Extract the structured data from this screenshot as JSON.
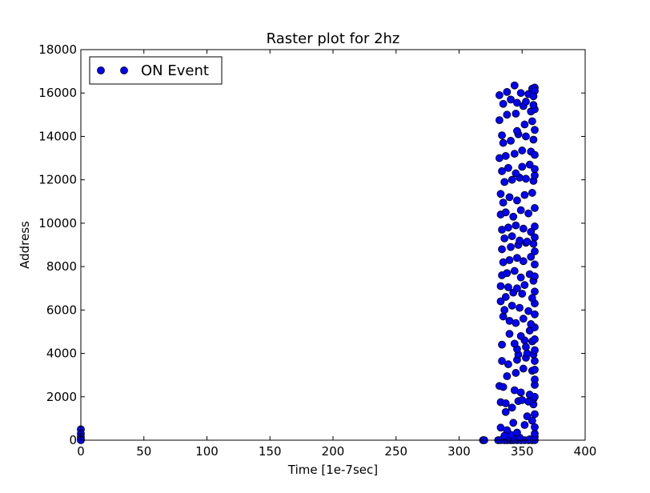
{
  "chart_data": {
    "type": "scatter",
    "title": "Raster plot for 2hz",
    "xlabel": "Time [1e-7sec]",
    "ylabel": "Address",
    "xlim": [
      0,
      400
    ],
    "ylim": [
      0,
      18000
    ],
    "xticks": [
      0,
      50,
      100,
      150,
      200,
      250,
      300,
      350,
      400
    ],
    "xtick_labels": [
      "0",
      "50",
      "100",
      "150",
      "200",
      "250",
      "300",
      "350",
      "400"
    ],
    "yticks": [
      0,
      2000,
      4000,
      6000,
      8000,
      10000,
      12000,
      14000,
      16000,
      18000
    ],
    "ytick_labels": [
      "0",
      "2000",
      "4000",
      "6000",
      "8000",
      "10000",
      "12000",
      "14000",
      "16000",
      "18000"
    ],
    "grid": false,
    "legend_position": "top-left",
    "series": [
      {
        "name": "ON Event",
        "color": "#0000ff",
        "marker": "circle",
        "points": [
          [
            0,
            500
          ],
          [
            0,
            300
          ],
          [
            0,
            150
          ],
          [
            0,
            50
          ],
          [
            0,
            0
          ],
          [
            319,
            0
          ],
          [
            320,
            0
          ],
          [
            331,
            0
          ],
          [
            333,
            0
          ],
          [
            336,
            0
          ],
          [
            338,
            0
          ],
          [
            341,
            0
          ],
          [
            343,
            0
          ],
          [
            346,
            0
          ],
          [
            349,
            0
          ],
          [
            352,
            0
          ],
          [
            355,
            0
          ],
          [
            358,
            0
          ],
          [
            360,
            0
          ],
          [
            339,
            80
          ],
          [
            344,
            60
          ],
          [
            356,
            40
          ],
          [
            360,
            150
          ],
          [
            360,
            300
          ],
          [
            341,
            250
          ],
          [
            348,
            120
          ],
          [
            333,
            580
          ],
          [
            338,
            460
          ],
          [
            343,
            800
          ],
          [
            352,
            700
          ],
          [
            358,
            900
          ],
          [
            360,
            600
          ],
          [
            336,
            200
          ],
          [
            346,
            350
          ],
          [
            337,
            1300
          ],
          [
            342,
            1500
          ],
          [
            354,
            1100
          ],
          [
            359,
            1650
          ],
          [
            360,
            1200
          ],
          [
            333,
            1750
          ],
          [
            337,
            1700
          ],
          [
            347,
            1800
          ],
          [
            350,
            1850
          ],
          [
            355,
            1780
          ],
          [
            359,
            1900
          ],
          [
            360,
            2000
          ],
          [
            332,
            2500
          ],
          [
            335,
            2450
          ],
          [
            344,
            2300
          ],
          [
            349,
            2200
          ],
          [
            356,
            2100
          ],
          [
            360,
            2550
          ],
          [
            360,
            2800
          ],
          [
            338,
            2950
          ],
          [
            345,
            3100
          ],
          [
            351,
            3300
          ],
          [
            358,
            3200
          ],
          [
            360,
            3250
          ],
          [
            334,
            3650
          ],
          [
            339,
            3500
          ],
          [
            346,
            3700
          ],
          [
            353,
            3800
          ],
          [
            360,
            3650
          ],
          [
            347,
            3950
          ],
          [
            354,
            4000
          ],
          [
            359,
            3950
          ],
          [
            360,
            4150
          ],
          [
            346,
            4200
          ],
          [
            353,
            4300
          ],
          [
            334,
            4400
          ],
          [
            344,
            4450
          ],
          [
            352,
            4600
          ],
          [
            358,
            4550
          ],
          [
            360,
            4650
          ],
          [
            340,
            4900
          ],
          [
            349,
            4800
          ],
          [
            356,
            5050
          ],
          [
            360,
            5200
          ],
          [
            335,
            5700
          ],
          [
            340,
            5500
          ],
          [
            345,
            5400
          ],
          [
            351,
            5600
          ],
          [
            357,
            5350
          ],
          [
            360,
            5800
          ],
          [
            336,
            6000
          ],
          [
            342,
            6200
          ],
          [
            348,
            6100
          ],
          [
            355,
            5950
          ],
          [
            360,
            6300
          ],
          [
            333,
            6400
          ],
          [
            337,
            6600
          ],
          [
            343,
            6800
          ],
          [
            350,
            6750
          ],
          [
            358,
            6550
          ],
          [
            360,
            6850
          ],
          [
            333,
            7100
          ],
          [
            339,
            7050
          ],
          [
            346,
            7000
          ],
          [
            352,
            7150
          ],
          [
            359,
            7350
          ],
          [
            334,
            7600
          ],
          [
            338,
            7700
          ],
          [
            344,
            7800
          ],
          [
            349,
            7500
          ],
          [
            356,
            7650
          ],
          [
            360,
            7550
          ],
          [
            335,
            8200
          ],
          [
            340,
            8300
          ],
          [
            346,
            8400
          ],
          [
            351,
            8250
          ],
          [
            357,
            8450
          ],
          [
            360,
            8100
          ],
          [
            334,
            8800
          ],
          [
            341,
            8900
          ],
          [
            347,
            9000
          ],
          [
            353,
            9100
          ],
          [
            359,
            9050
          ],
          [
            360,
            8700
          ],
          [
            336,
            9300
          ],
          [
            342,
            9400
          ],
          [
            348,
            9200
          ],
          [
            354,
            9150
          ],
          [
            360,
            9350
          ],
          [
            334,
            9700
          ],
          [
            339,
            9800
          ],
          [
            345,
            9900
          ],
          [
            351,
            9750
          ],
          [
            357,
            9600
          ],
          [
            360,
            9850
          ],
          [
            333,
            10400
          ],
          [
            337,
            10500
          ],
          [
            343,
            10300
          ],
          [
            349,
            10600
          ],
          [
            355,
            10450
          ],
          [
            360,
            10700
          ],
          [
            335,
            10950
          ],
          [
            340,
            11200
          ],
          [
            346,
            11050
          ],
          [
            352,
            11300
          ],
          [
            358,
            11400
          ],
          [
            333,
            11350
          ],
          [
            336,
            11900
          ],
          [
            342,
            12000
          ],
          [
            348,
            12100
          ],
          [
            353,
            12050
          ],
          [
            359,
            11950
          ],
          [
            360,
            12200
          ],
          [
            334,
            12400
          ],
          [
            339,
            12550
          ],
          [
            345,
            12300
          ],
          [
            350,
            12600
          ],
          [
            356,
            12700
          ],
          [
            360,
            12500
          ],
          [
            332,
            13000
          ],
          [
            337,
            13100
          ],
          [
            344,
            13200
          ],
          [
            350,
            13350
          ],
          [
            357,
            13300
          ],
          [
            360,
            13150
          ],
          [
            335,
            13700
          ],
          [
            341,
            13800
          ],
          [
            347,
            14100
          ],
          [
            353,
            14000
          ],
          [
            359,
            13850
          ],
          [
            334,
            14050
          ],
          [
            346,
            14250
          ],
          [
            352,
            14550
          ],
          [
            358,
            14700
          ],
          [
            360,
            14300
          ],
          [
            332,
            14750
          ],
          [
            338,
            15000
          ],
          [
            345,
            15050
          ],
          [
            351,
            15400
          ],
          [
            357,
            15150
          ],
          [
            360,
            15250
          ],
          [
            335,
            15500
          ],
          [
            341,
            15700
          ],
          [
            346,
            15550
          ],
          [
            353,
            15600
          ],
          [
            359,
            15450
          ],
          [
            332,
            15900
          ],
          [
            338,
            16050
          ],
          [
            344,
            16350
          ],
          [
            349,
            16000
          ],
          [
            355,
            15950
          ],
          [
            358,
            16200
          ],
          [
            360,
            16250
          ],
          [
            360,
            16100
          ],
          [
            359,
            15850
          ]
        ]
      }
    ]
  }
}
